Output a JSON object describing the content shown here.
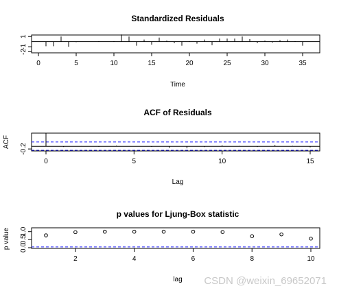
{
  "chart_data": [
    {
      "type": "line",
      "title": "Standardized Residuals",
      "xlabel": "Time",
      "ylabel": "",
      "xlim": [
        0,
        36
      ],
      "ylim": [
        -2.2,
        1.3
      ],
      "x_ticks": [
        0,
        5,
        10,
        15,
        20,
        25,
        30,
        35
      ],
      "y_ticks": [
        -2,
        -1,
        1
      ],
      "x": [
        1,
        2,
        3,
        4,
        5,
        6,
        7,
        8,
        9,
        10,
        11,
        12,
        13,
        14,
        15,
        16,
        17,
        18,
        19,
        20,
        21,
        22,
        23,
        24,
        25,
        26,
        27,
        28,
        29,
        30,
        31,
        32,
        33,
        34,
        35
      ],
      "values": [
        -0.9,
        -0.9,
        1.0,
        -1.0,
        -0.1,
        0.0,
        0.0,
        0.1,
        0.0,
        0.1,
        1.4,
        1.0,
        -0.8,
        0.4,
        -0.6,
        0.8,
        0.2,
        -0.3,
        -0.8,
        0.1,
        -0.4,
        0.4,
        -0.7,
        0.6,
        0.6,
        0.6,
        1.0,
        0.5,
        -0.3,
        0.2,
        -0.2,
        0.3,
        0.4,
        0.1,
        -0.8
      ]
    },
    {
      "type": "bar",
      "title": "ACF of Residuals",
      "xlabel": "Lag",
      "ylabel": "ACF",
      "xlim": [
        0,
        15
      ],
      "ylim": [
        -0.35,
        1.0
      ],
      "x_ticks": [
        0,
        5,
        10,
        15
      ],
      "y_ticks": [
        -0.2
      ],
      "lags": [
        0,
        1,
        2,
        3,
        4,
        5,
        6,
        7,
        8,
        9,
        10,
        11,
        12,
        13,
        14,
        15
      ],
      "values": [
        1.0,
        -0.05,
        0.02,
        -0.03,
        0.05,
        0.01,
        -0.04,
        -0.12,
        -0.15,
        -0.06,
        0.08,
        0.03,
        -0.05,
        0.1,
        0.04,
        -0.08
      ],
      "conf_limit": 0.33
    },
    {
      "type": "scatter",
      "title": "p values for Ljung-Box statistic",
      "xlabel": "lag",
      "ylabel": "p value",
      "xlim": [
        1,
        10
      ],
      "ylim": [
        0,
        1.2
      ],
      "x_ticks": [
        2,
        4,
        6,
        8,
        10
      ],
      "y_ticks": [
        0.0,
        0.5,
        1.0
      ],
      "x": [
        1,
        2,
        3,
        4,
        5,
        6,
        7,
        8,
        9,
        10
      ],
      "values": [
        0.77,
        0.97,
        1.0,
        1.0,
        1.0,
        1.0,
        0.98,
        0.72,
        0.83,
        0.57
      ],
      "threshold": 0.05
    }
  ],
  "watermark": "CSDN @weixin_69652071"
}
